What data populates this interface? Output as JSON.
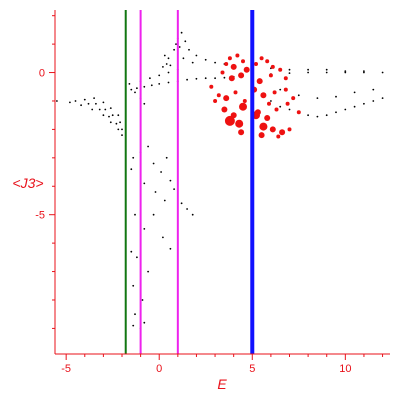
{
  "chart_data": {
    "type": "scatter",
    "title": "",
    "xlabel": "E",
    "ylabel": "<J3>",
    "xlim": [
      -5.6,
      12.4
    ],
    "ylim": [
      -9.9,
      2.2
    ],
    "xticks": [
      -5,
      0,
      5,
      10
    ],
    "yticks": [
      0,
      -5
    ],
    "tick_labels_x": [
      "-5",
      "0",
      "5",
      "10"
    ],
    "tick_labels_y": [
      "0",
      "-5"
    ],
    "grid": false,
    "axis_color": "#e8111a",
    "vertical_lines": [
      {
        "x": -1.8,
        "color": "#117711",
        "width": 2
      },
      {
        "x": -1.0,
        "color": "#ee22ee",
        "width": 2
      },
      {
        "x": 1.0,
        "color": "#ee22ee",
        "width": 2
      },
      {
        "x": 5.0,
        "color": "#1111ff",
        "width": 4
      }
    ],
    "series": [
      {
        "color": "#000000",
        "marker": "dot",
        "description": "dense curved bands from (-6,-1) to (-2,-2.2) and along y≈-0.2 to x=12; sparse points below",
        "points": [
          [
            -5.5,
            -1.0
          ],
          [
            -4.8,
            -1.05
          ],
          [
            -4.2,
            -1.15
          ],
          [
            -3.6,
            -1.3
          ],
          [
            -3.0,
            -1.5
          ],
          [
            -2.6,
            -1.75
          ],
          [
            -2.2,
            -2.0
          ],
          [
            -2.0,
            -2.2
          ],
          [
            -4.5,
            -1.0
          ],
          [
            -3.8,
            -1.1
          ],
          [
            -3.2,
            -1.3
          ],
          [
            -2.7,
            -1.55
          ],
          [
            -2.3,
            -1.8
          ],
          [
            -2.0,
            -2.0
          ],
          [
            -4.0,
            -0.95
          ],
          [
            -3.4,
            -1.1
          ],
          [
            -2.9,
            -1.3
          ],
          [
            -2.5,
            -1.5
          ],
          [
            -2.1,
            -1.75
          ],
          [
            -3.5,
            -0.9
          ],
          [
            -3.0,
            -1.05
          ],
          [
            -2.6,
            -1.25
          ],
          [
            -2.2,
            -1.5
          ],
          [
            -1.5,
            -0.6
          ],
          [
            -1.2,
            -0.55
          ],
          [
            -0.8,
            -0.5
          ],
          [
            -0.4,
            -0.45
          ],
          [
            0,
            -0.4
          ],
          [
            0.5,
            -0.35
          ],
          [
            1.0,
            -0.3
          ],
          [
            1.5,
            -0.25
          ],
          [
            2.0,
            -0.22
          ],
          [
            2.5,
            -0.2
          ],
          [
            3.0,
            -0.2
          ],
          [
            3.5,
            -0.18
          ],
          [
            4.0,
            -0.15
          ],
          [
            4.5,
            -0.12
          ],
          [
            5.0,
            -0.1
          ],
          [
            6.0,
            -0.05
          ],
          [
            7.0,
            -0.02
          ],
          [
            8.0,
            0
          ],
          [
            9.0,
            0
          ],
          [
            10.0,
            0
          ],
          [
            11.0,
            0
          ],
          [
            12.0,
            0
          ],
          [
            -1.0,
            -0.3
          ],
          [
            -0.5,
            -0.2
          ],
          [
            0,
            -0.1
          ],
          [
            0.5,
            0
          ],
          [
            1.0,
            0.1
          ],
          [
            0.5,
            0.5
          ],
          [
            0.8,
            0.8
          ],
          [
            1.0,
            1.2
          ],
          [
            1.1,
            0.9
          ],
          [
            0.9,
            1.0
          ],
          [
            1.2,
            1.4
          ],
          [
            1.4,
            1.1
          ],
          [
            1.6,
            0.8
          ],
          [
            2.0,
            0.6
          ],
          [
            2.5,
            0.45
          ],
          [
            3.0,
            0.35
          ],
          [
            3.5,
            0.3
          ],
          [
            4.0,
            0.25
          ],
          [
            5.0,
            0.2
          ],
          [
            6.0,
            0.15
          ],
          [
            7.0,
            0.1
          ],
          [
            8.0,
            0.1
          ],
          [
            9.0,
            0.1
          ],
          [
            10.0,
            0.05
          ],
          [
            11.0,
            0.05
          ],
          [
            0.2,
            0.2
          ],
          [
            0.4,
            0.3
          ],
          [
            0.6,
            0.25
          ],
          [
            0.3,
            0.6
          ],
          [
            1.3,
            0.5
          ],
          [
            1.8,
            0.35
          ],
          [
            -1.6,
            -0.4
          ],
          [
            -1.3,
            -0.7
          ],
          [
            -1.0,
            -0.9
          ],
          [
            -0.8,
            -1.1
          ],
          [
            5.5,
            -0.8
          ],
          [
            6.0,
            -1.0
          ],
          [
            6.5,
            -1.2
          ],
          [
            7.0,
            -1.3
          ],
          [
            7.5,
            -1.4
          ],
          [
            8.0,
            -1.5
          ],
          [
            8.5,
            -1.55
          ],
          [
            9.0,
            -1.5
          ],
          [
            9.5,
            -1.4
          ],
          [
            10.0,
            -1.3
          ],
          [
            10.5,
            -1.2
          ],
          [
            11.0,
            -1.1
          ],
          [
            11.5,
            -1.0
          ],
          [
            12.0,
            -0.9
          ],
          [
            6.5,
            -0.6
          ],
          [
            7.5,
            -0.8
          ],
          [
            8.5,
            -0.9
          ],
          [
            9.5,
            -0.85
          ],
          [
            10.5,
            -0.7
          ],
          [
            11.5,
            -0.6
          ],
          [
            -1.4,
            -3.0
          ],
          [
            -1.0,
            -2.8
          ],
          [
            -0.6,
            -2.6
          ],
          [
            -0.3,
            -3.2
          ],
          [
            0.1,
            -3.5
          ],
          [
            0.4,
            -3.0
          ],
          [
            0.6,
            -3.8
          ],
          [
            -1.5,
            -3.4
          ],
          [
            -0.8,
            -3.9
          ],
          [
            -0.2,
            -4.2
          ],
          [
            0.3,
            -4.5
          ],
          [
            0.8,
            -4.1
          ],
          [
            1.2,
            -4.6
          ],
          [
            1.5,
            -4.8
          ],
          [
            1.8,
            -5.0
          ],
          [
            -1.3,
            -5.0
          ],
          [
            -0.8,
            -5.5
          ],
          [
            -0.3,
            -5.0
          ],
          [
            0.2,
            -5.8
          ],
          [
            0.6,
            -6.2
          ],
          [
            -1.5,
            -6.3
          ],
          [
            -1.2,
            -6.5
          ],
          [
            -0.6,
            -7.0
          ],
          [
            -1.4,
            -7.5
          ],
          [
            -0.9,
            -8.0
          ],
          [
            -1.3,
            -8.5
          ],
          [
            -0.8,
            -8.8
          ],
          [
            -1.4,
            -8.9
          ],
          [
            -1.0,
            -9.0
          ]
        ]
      },
      {
        "color": "#ee1111",
        "marker": "circle",
        "description": "red clusters around E=3..7, <J3>=0.5..-2.2",
        "points": [
          [
            3.6,
            0.3,
            2
          ],
          [
            3.8,
            0.5,
            2
          ],
          [
            4.0,
            0.2,
            3
          ],
          [
            4.2,
            0.6,
            2
          ],
          [
            4.5,
            0.4,
            2
          ],
          [
            4.7,
            0.1,
            3
          ],
          [
            5.2,
            0.3,
            2
          ],
          [
            5.5,
            0.5,
            2
          ],
          [
            5.8,
            0.4,
            2
          ],
          [
            6.1,
            0.2,
            2
          ],
          [
            6.5,
            0.1,
            2
          ],
          [
            3.9,
            -0.2,
            3
          ],
          [
            4.4,
            -0.1,
            3
          ],
          [
            5.4,
            -0.3,
            3
          ],
          [
            6.0,
            -0.1,
            2
          ],
          [
            6.8,
            -0.2,
            2
          ],
          [
            3.2,
            -0.8,
            2
          ],
          [
            3.6,
            -0.9,
            3
          ],
          [
            4.1,
            -0.7,
            2
          ],
          [
            4.6,
            -1.0,
            2
          ],
          [
            5.1,
            -0.6,
            3
          ],
          [
            5.6,
            -0.8,
            3
          ],
          [
            6.2,
            -0.7,
            2
          ],
          [
            6.8,
            -0.6,
            2
          ],
          [
            7.2,
            -0.9,
            2
          ],
          [
            3.5,
            -1.3,
            3
          ],
          [
            4.0,
            -1.5,
            3
          ],
          [
            4.5,
            -1.2,
            4
          ],
          [
            5.3,
            -1.4,
            3
          ],
          [
            5.8,
            -1.6,
            3
          ],
          [
            6.3,
            -1.3,
            2
          ],
          [
            6.9,
            -1.1,
            2
          ],
          [
            3.8,
            -1.7,
            5
          ],
          [
            4.3,
            -1.8,
            4
          ],
          [
            5.2,
            -1.5,
            4
          ],
          [
            5.6,
            -1.9,
            4
          ],
          [
            6.1,
            -2.0,
            3
          ],
          [
            6.6,
            -2.1,
            3
          ],
          [
            7.0,
            -2.0,
            2
          ],
          [
            4.4,
            -2.1,
            3
          ],
          [
            5.5,
            -2.2,
            3
          ],
          [
            6.4,
            -2.25,
            2
          ],
          [
            2.8,
            -0.5,
            2
          ],
          [
            3.0,
            -1.0,
            2
          ],
          [
            7.5,
            -1.4,
            2
          ],
          [
            3.4,
            0.0,
            2
          ],
          [
            5.9,
            -1.1,
            2
          ]
        ]
      }
    ]
  }
}
